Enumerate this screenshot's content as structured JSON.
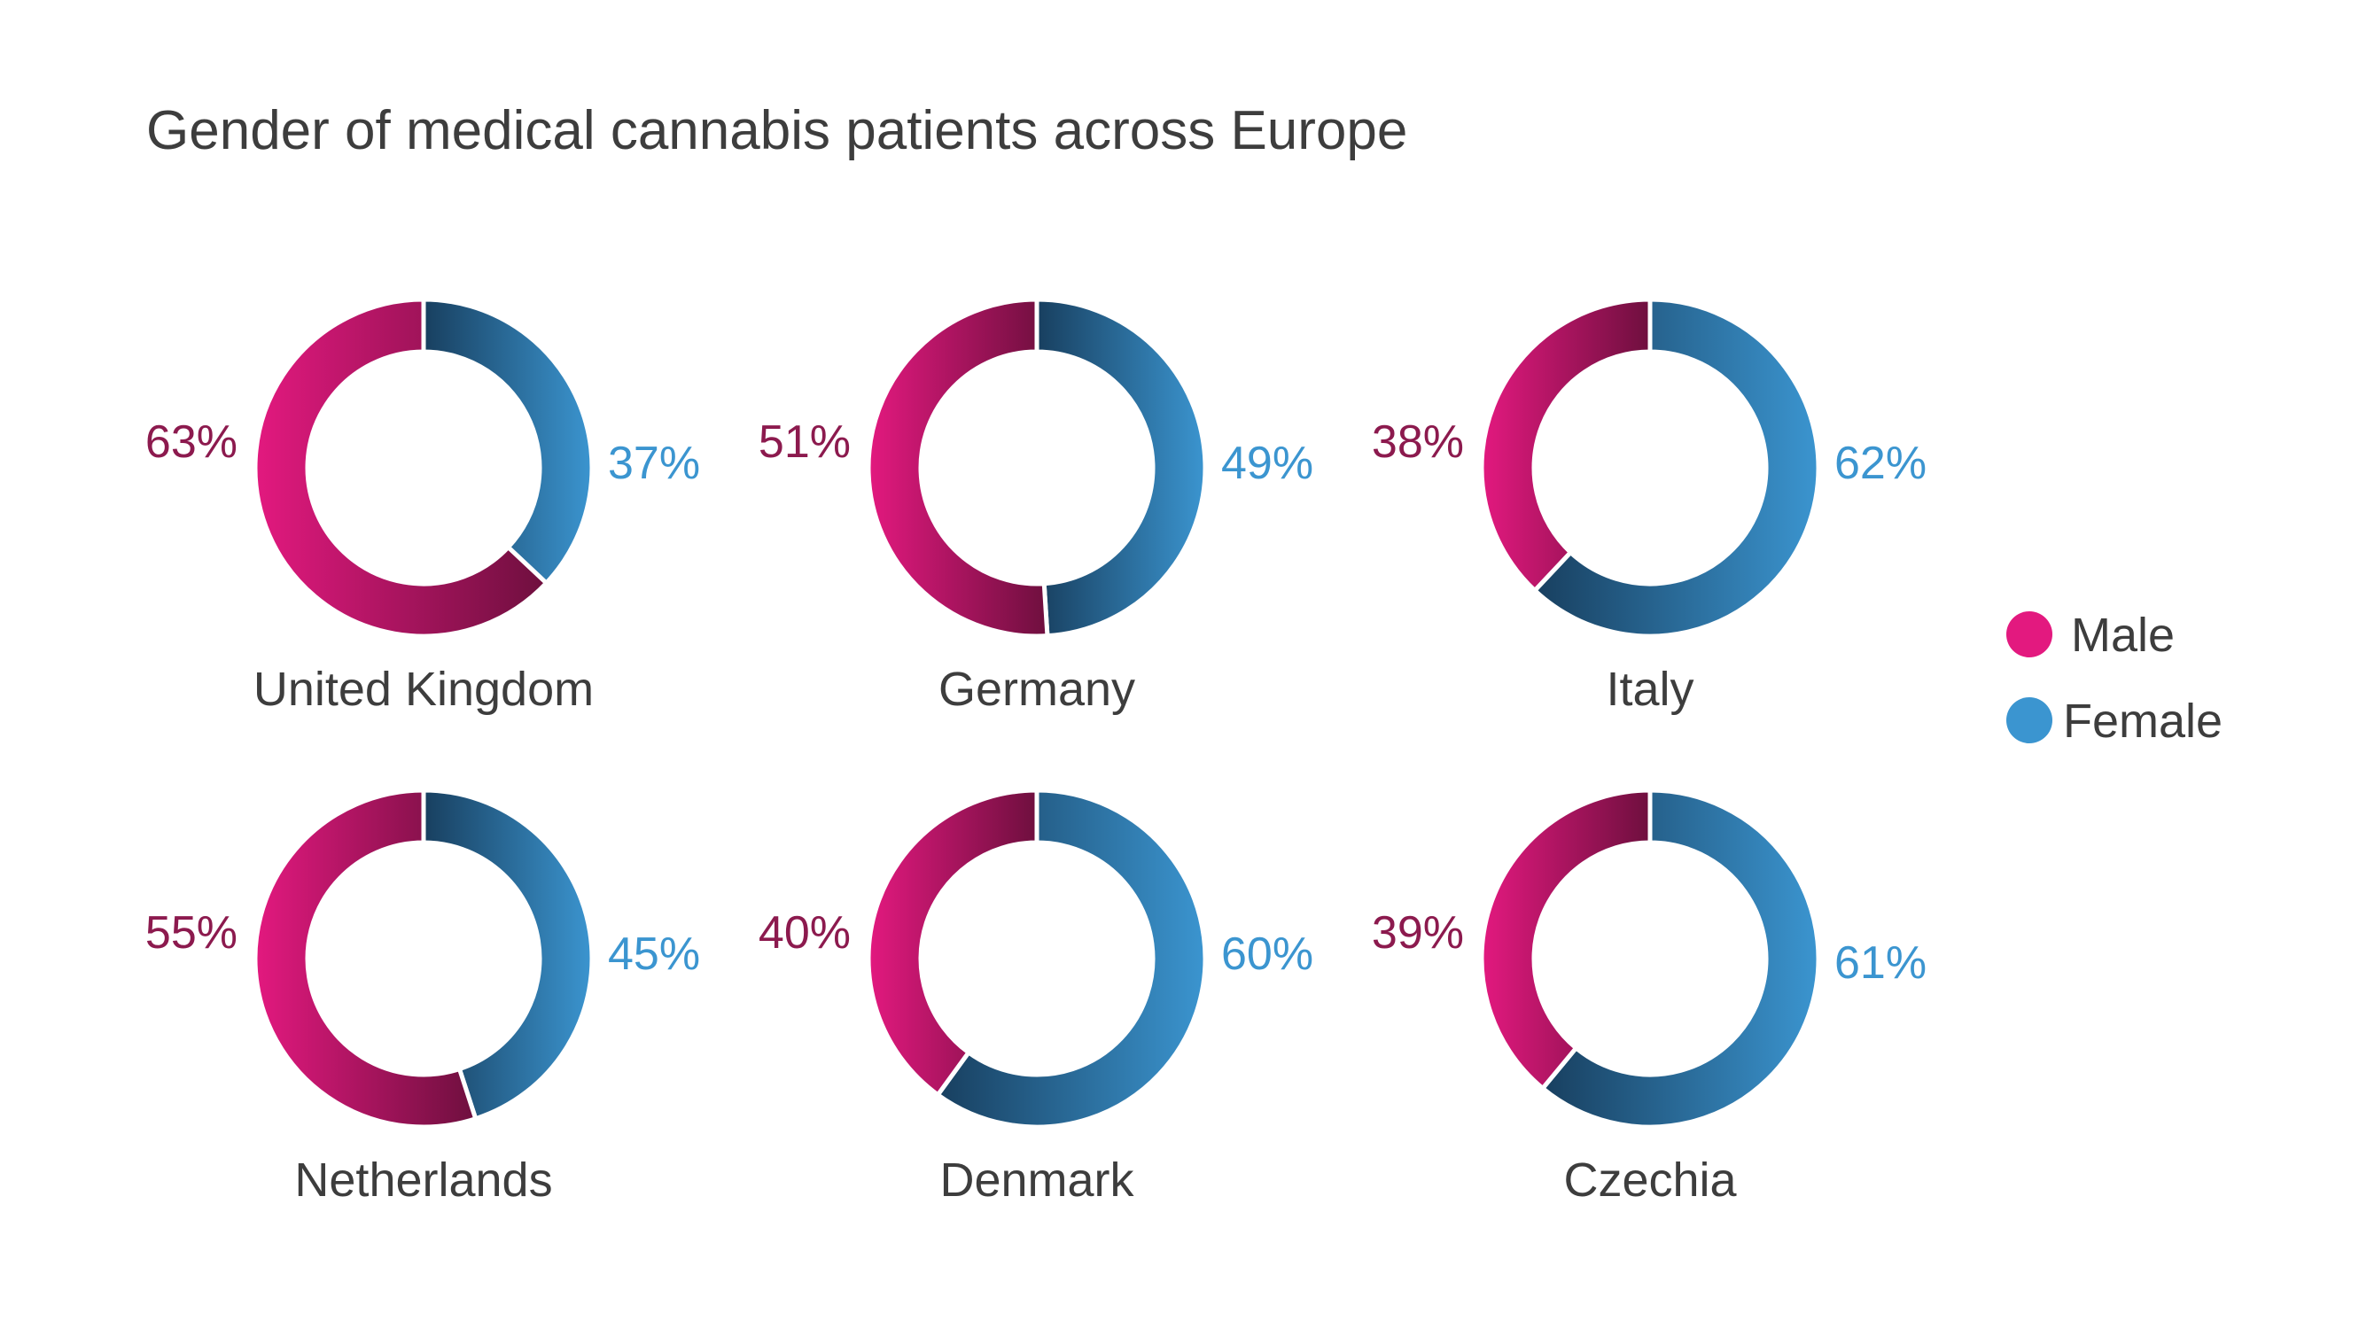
{
  "chart_data": {
    "type": "donut",
    "title": "Gender of medical cannabis patients across Europe",
    "unit": "%",
    "legend": [
      {
        "name": "Male",
        "color": "#e3197f"
      },
      {
        "name": "Female",
        "color": "#3b95d0"
      }
    ],
    "legend_placement": "right",
    "colors": {
      "male_light": "#e3197f",
      "male_dark": "#6e0f3e",
      "male_label": "#8c1a4e",
      "female_light": "#3b95d0",
      "female_dark": "#183f5f",
      "female_label": "#3b95d0"
    },
    "countries": [
      {
        "name": "United Kingdom",
        "male": 63,
        "female": 37,
        "male_label": "63%",
        "female_label": "37%"
      },
      {
        "name": "Germany",
        "male": 51,
        "female": 49,
        "male_label": "51%",
        "female_label": "49%"
      },
      {
        "name": "Italy",
        "male": 38,
        "female": 62,
        "male_label": "38%",
        "female_label": "62%"
      },
      {
        "name": "Netherlands",
        "male": 55,
        "female": 45,
        "male_label": "55%",
        "female_label": "45%"
      },
      {
        "name": "Denmark",
        "male": 40,
        "female": 60,
        "male_label": "40%",
        "female_label": "60%"
      },
      {
        "name": "Czechia",
        "male": 39,
        "female": 61,
        "male_label": "39%",
        "female_label": "61%"
      }
    ]
  }
}
